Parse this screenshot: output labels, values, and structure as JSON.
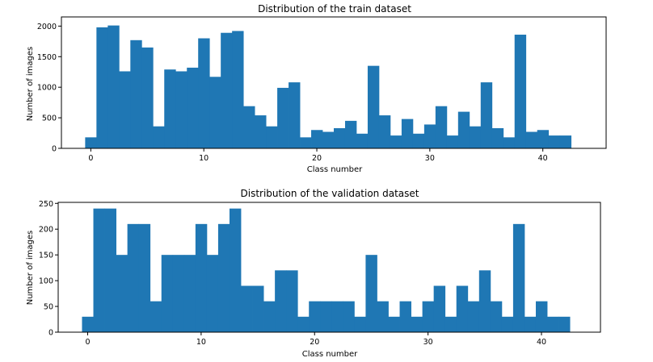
{
  "colors": {
    "bar": "#1f77b4",
    "axis": "#000000",
    "background": "#ffffff"
  },
  "chart_data": [
    {
      "type": "bar",
      "title": "Distribution of the train dataset",
      "xlabel": "Class number",
      "ylabel": "Number of images",
      "x": [
        0,
        1,
        2,
        3,
        4,
        5,
        6,
        7,
        8,
        9,
        10,
        11,
        12,
        13,
        14,
        15,
        16,
        17,
        18,
        19,
        20,
        21,
        22,
        23,
        24,
        25,
        26,
        27,
        28,
        29,
        30,
        31,
        32,
        33,
        34,
        35,
        36,
        37,
        38,
        39,
        40,
        41,
        42
      ],
      "values": [
        180,
        1980,
        2010,
        1260,
        1770,
        1650,
        360,
        1290,
        1260,
        1320,
        1800,
        1170,
        1890,
        1920,
        690,
        540,
        360,
        990,
        1080,
        180,
        300,
        270,
        330,
        450,
        240,
        1350,
        540,
        210,
        480,
        240,
        390,
        690,
        210,
        599,
        360,
        1080,
        330,
        180,
        1860,
        270,
        300,
        210,
        210
      ],
      "xlim": [
        -2.6,
        45.6
      ],
      "ylim": [
        0,
        2150
      ],
      "xticks": [
        0,
        10,
        20,
        30,
        40
      ],
      "yticks": [
        0,
        500,
        1000,
        1500,
        2000
      ],
      "grid": false
    },
    {
      "type": "bar",
      "title": "Distribution of the validation dataset",
      "xlabel": "Class number",
      "ylabel": "Number of images",
      "x": [
        0,
        1,
        2,
        3,
        4,
        5,
        6,
        7,
        8,
        9,
        10,
        11,
        12,
        13,
        14,
        15,
        16,
        17,
        18,
        19,
        20,
        21,
        22,
        23,
        24,
        25,
        26,
        27,
        28,
        29,
        30,
        31,
        32,
        33,
        34,
        35,
        36,
        37,
        38,
        39,
        40,
        41,
        42
      ],
      "values": [
        30,
        240,
        240,
        150,
        210,
        210,
        60,
        150,
        150,
        150,
        210,
        150,
        210,
        240,
        90,
        90,
        60,
        120,
        120,
        30,
        60,
        60,
        60,
        60,
        30,
        150,
        60,
        30,
        60,
        30,
        60,
        90,
        30,
        90,
        60,
        120,
        60,
        30,
        210,
        30,
        60,
        30,
        30
      ],
      "xlim": [
        -2.6,
        45.2
      ],
      "ylim": [
        0,
        252
      ],
      "xticks": [
        0,
        10,
        20,
        30,
        40
      ],
      "yticks": [
        0,
        50,
        100,
        150,
        200,
        250
      ],
      "grid": false
    }
  ]
}
